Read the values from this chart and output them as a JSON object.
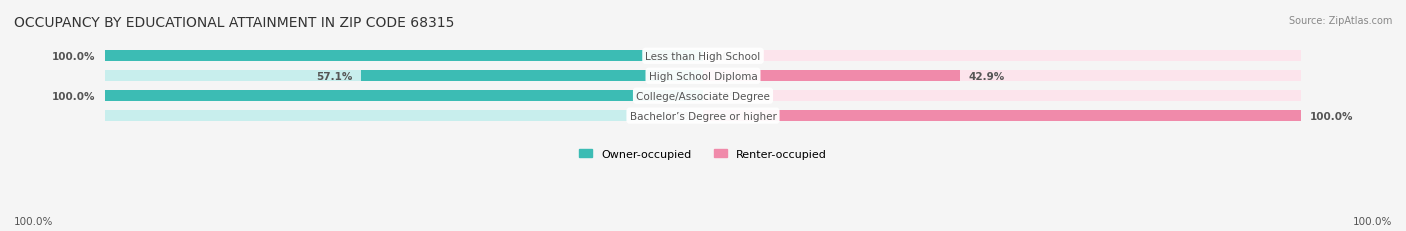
{
  "title": "OCCUPANCY BY EDUCATIONAL ATTAINMENT IN ZIP CODE 68315",
  "source": "Source: ZipAtlas.com",
  "categories": [
    "Less than High School",
    "High School Diploma",
    "College/Associate Degree",
    "Bachelor’s Degree or higher"
  ],
  "owner_pct": [
    100.0,
    57.1,
    100.0,
    0.0
  ],
  "renter_pct": [
    0.0,
    42.9,
    0.0,
    100.0
  ],
  "owner_color": "#3cbcb4",
  "renter_color": "#f08aaa",
  "owner_color_light": "#c8eeed",
  "renter_color_light": "#fce4ec",
  "bar_height": 0.55,
  "bg_color": "#f5f5f5",
  "label_color": "#555555",
  "title_color": "#333333",
  "legend_owner": "Owner-occupied",
  "legend_renter": "Renter-occupied"
}
